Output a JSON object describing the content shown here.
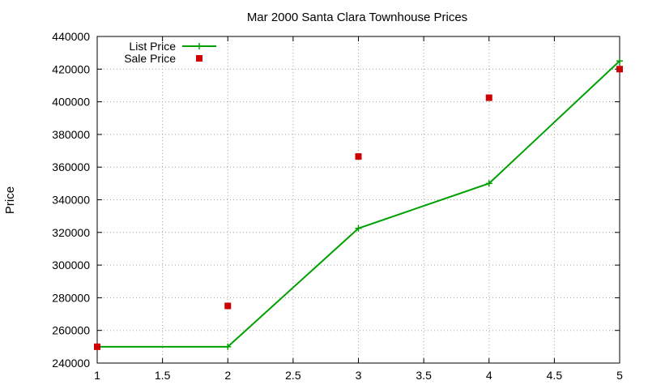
{
  "chart_data": {
    "type": "line",
    "title": "Mar 2000 Santa Clara Townhouse Prices",
    "xlabel": "",
    "ylabel": "Price",
    "xlim": [
      1,
      5
    ],
    "ylim": [
      240000,
      440000
    ],
    "x_ticks": [
      "1",
      "1.5",
      "2",
      "2.5",
      "3",
      "3.5",
      "4",
      "4.5",
      "5"
    ],
    "x_tick_values": [
      1,
      1.5,
      2,
      2.5,
      3,
      3.5,
      4,
      4.5,
      5
    ],
    "y_ticks": [
      "240000",
      "260000",
      "280000",
      "300000",
      "320000",
      "340000",
      "360000",
      "380000",
      "400000",
      "420000",
      "440000"
    ],
    "y_tick_values": [
      240000,
      260000,
      280000,
      300000,
      320000,
      340000,
      360000,
      380000,
      400000,
      420000,
      440000
    ],
    "grid": true,
    "legend_position": "top-left",
    "series": [
      {
        "name": "List Price",
        "style": "linespoints",
        "marker": "plus",
        "color": "#00a000",
        "x": [
          1,
          2,
          3,
          4,
          5
        ],
        "y": [
          250000,
          250000,
          322500,
          350000,
          425000
        ]
      },
      {
        "name": "Sale Price",
        "style": "points",
        "marker": "square",
        "color": "#cc0000",
        "x": [
          1,
          2,
          3,
          4,
          5
        ],
        "y": [
          250000,
          275000,
          366500,
          402500,
          420000
        ]
      }
    ]
  }
}
